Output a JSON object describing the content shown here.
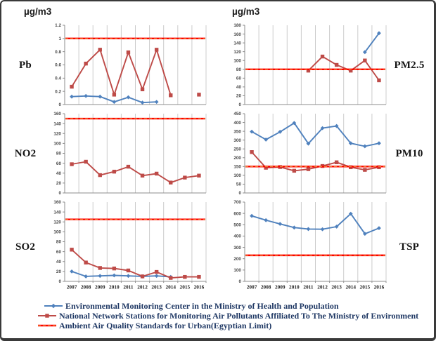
{
  "figure": {
    "unit_label_left": "µg/m3",
    "unit_label_right": "µg/m3"
  },
  "colors": {
    "health": "#4F81BD",
    "environment": "#BE4B48",
    "standard": "#FF0000",
    "standard_dash": "#E8A33D",
    "gridline": "#CCCCCC",
    "axis": "#8C8C8C",
    "tick_text": "#4a4a4a",
    "year_text": "#222222",
    "legend_text": "#1F3864"
  },
  "categories": [
    "2007",
    "2008",
    "2009",
    "2010",
    "2011",
    "2012",
    "2013",
    "2014",
    "2015",
    "2016"
  ],
  "chart_data": [
    {
      "id": "pb",
      "type": "line",
      "title": "Pb",
      "label_side": "left",
      "ylabel": "µg/m3",
      "ylim": [
        0,
        1.2
      ],
      "yticks": [
        "0",
        "0.2",
        "0.4",
        "0.6",
        "0.8",
        "1",
        "1.2"
      ],
      "standard": 1,
      "show_x_labels": false,
      "grid": "vertical",
      "series": [
        {
          "name": "health",
          "values": [
            0.12,
            0.13,
            0.12,
            0.04,
            0.11,
            0.03,
            0.04,
            null,
            null,
            null
          ]
        },
        {
          "name": "environment",
          "values": [
            0.27,
            0.62,
            0.83,
            0.15,
            0.79,
            0.23,
            0.83,
            0.14,
            null,
            0.15
          ]
        }
      ]
    },
    {
      "id": "pm25",
      "type": "line",
      "title": "PM2.5",
      "label_side": "right",
      "ylabel": "µg/m3",
      "ylim": [
        0,
        180
      ],
      "yticks": [
        "0",
        "20",
        "40",
        "60",
        "80",
        "100",
        "120",
        "140",
        "160",
        "180"
      ],
      "standard": 80,
      "show_x_labels": false,
      "grid": "vertical",
      "series": [
        {
          "name": "health",
          "values": [
            null,
            null,
            null,
            null,
            null,
            null,
            null,
            null,
            119,
            162
          ]
        },
        {
          "name": "environment",
          "values": [
            null,
            null,
            null,
            null,
            77,
            109,
            90,
            77,
            100,
            55
          ]
        }
      ]
    },
    {
      "id": "no2",
      "type": "line",
      "title": "NO2",
      "label_side": "left",
      "ylabel": "µg/m3",
      "ylim": [
        0,
        160
      ],
      "yticks": [
        "0",
        "20",
        "40",
        "60",
        "80",
        "100",
        "120",
        "140",
        "160"
      ],
      "standard": 150,
      "show_x_labels": false,
      "grid": "vertical",
      "series": [
        {
          "name": "environment",
          "values": [
            58,
            63,
            36,
            43,
            53,
            35,
            39,
            21,
            31,
            35
          ]
        }
      ]
    },
    {
      "id": "pm10",
      "type": "line",
      "title": "PM10",
      "label_side": "right",
      "ylabel": "µg/m3",
      "ylim": [
        0,
        450
      ],
      "yticks": [
        "0",
        "50",
        "100",
        "150",
        "200",
        "250",
        "300",
        "350",
        "400",
        "450"
      ],
      "standard": 150,
      "show_x_labels": false,
      "grid": "vertical",
      "series": [
        {
          "name": "health",
          "values": [
            348,
            303,
            347,
            397,
            280,
            368,
            380,
            282,
            265,
            282
          ]
        },
        {
          "name": "environment",
          "values": [
            232,
            143,
            147,
            126,
            135,
            153,
            174,
            146,
            131,
            146
          ]
        }
      ]
    },
    {
      "id": "so2",
      "type": "line",
      "title": "SO2",
      "label_side": "left",
      "ylabel": "µg/m3",
      "ylim": [
        0,
        160
      ],
      "yticks": [
        "0",
        "20",
        "40",
        "60",
        "80",
        "100",
        "120",
        "140",
        "160"
      ],
      "standard": 125,
      "show_x_labels": true,
      "grid": "vertical",
      "series": [
        {
          "name": "health",
          "values": [
            20,
            10,
            11,
            12,
            11,
            10,
            11,
            9,
            null,
            null
          ]
        },
        {
          "name": "environment",
          "values": [
            64,
            38,
            27,
            26,
            22,
            10,
            19,
            7,
            9,
            9
          ]
        }
      ]
    },
    {
      "id": "tsp",
      "type": "line",
      "title": "TSP",
      "label_side": "right",
      "ylabel": "µg/m3",
      "ylim": [
        0,
        700
      ],
      "yticks": [
        "0",
        "100",
        "200",
        "300",
        "400",
        "500",
        "600",
        "700"
      ],
      "standard": 230,
      "show_x_labels": true,
      "grid": "vertical",
      "series": [
        {
          "name": "health",
          "values": [
            578,
            540,
            507,
            475,
            462,
            460,
            483,
            597,
            420,
            470
          ]
        }
      ]
    }
  ],
  "legend": {
    "items": [
      {
        "name": "health",
        "label": "Environmental Monitoring Center in the Ministry of Health and Population"
      },
      {
        "name": "environment",
        "label": "National Network Stations for Monitoring Air Pollutants Affiliated To The Ministry of Environment"
      },
      {
        "name": "standard",
        "label": "Ambient Air Quality Standards for Urban(Egyptian Limit)"
      }
    ]
  }
}
